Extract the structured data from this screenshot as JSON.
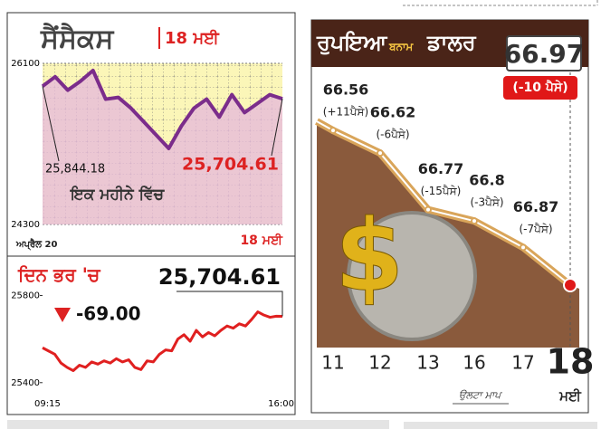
{
  "chart_data": [
    {
      "type": "line",
      "title": "ਸੈਂਸੈਕਸ",
      "subtitle": "18 ਮਈ",
      "annotation": "ਇਕ ਮਹੀਨੇ ਵਿੱਚ",
      "categories": [
        "ਅਪ੍ਰੈਲ 20",
        null,
        null,
        null,
        null,
        null,
        null,
        null,
        null,
        null,
        null,
        null,
        null,
        null,
        null,
        null,
        null,
        null,
        null,
        "18 ਮਈ"
      ],
      "values": [
        25844.18,
        25950,
        25800,
        25900,
        26020,
        25700,
        25720,
        25600,
        25450,
        25300,
        25150,
        25400,
        25600,
        25700,
        25500,
        25750,
        25550,
        25650,
        25750,
        25704.61
      ],
      "value_labels": [
        "25,844.18",
        null,
        null,
        null,
        null,
        null,
        null,
        null,
        null,
        null,
        null,
        null,
        null,
        null,
        null,
        null,
        null,
        null,
        null,
        "25,704.61"
      ],
      "color": "#7b2d8b",
      "ylim": [
        24300,
        26100
      ],
      "yticks": [
        24300,
        26100
      ],
      "grid": true
    },
    {
      "type": "line",
      "title": "ਦਿਨ ਭਰ 'ਚ",
      "change_label": "-69.00",
      "categories": [
        "09:15",
        null,
        null,
        null,
        null,
        null,
        null,
        null,
        null,
        null,
        null,
        null,
        null,
        null,
        null,
        null,
        null,
        null,
        null,
        null,
        null,
        null,
        null,
        null,
        null,
        null,
        null,
        null,
        null,
        null,
        null,
        null,
        null,
        null,
        null,
        null,
        null,
        null,
        null,
        "16:00"
      ],
      "values": [
        25560,
        25545,
        25530,
        25490,
        25470,
        25455,
        25480,
        25470,
        25495,
        25485,
        25500,
        25490,
        25510,
        25495,
        25505,
        25470,
        25460,
        25500,
        25495,
        25530,
        25550,
        25546,
        25600,
        25620,
        25590,
        25640,
        25610,
        25630,
        25615,
        25640,
        25660,
        25650,
        25670,
        25660,
        25690,
        25725,
        25710,
        25700,
        25705,
        25704.61
      ],
      "value_labels": [
        null,
        null,
        null,
        null,
        null,
        null,
        null,
        null,
        null,
        null,
        null,
        null,
        null,
        null,
        null,
        null,
        null,
        null,
        null,
        null,
        null,
        null,
        null,
        null,
        null,
        null,
        null,
        null,
        null,
        null,
        null,
        null,
        null,
        null,
        null,
        null,
        null,
        null,
        null,
        "25,704.61"
      ],
      "color": "#e02020",
      "ylim": [
        25370,
        25910
      ],
      "yticks": [
        25400,
        25800
      ]
    },
    {
      "type": "line",
      "title": [
        "ਰੁਪਇਆ",
        "ਬਨਾਮ",
        "ਡਾਲਰ"
      ],
      "categories": [
        "11",
        "12",
        "13",
        "16",
        "17",
        "18"
      ],
      "x_unit": "ਮਈ",
      "values": [
        66.56,
        66.62,
        66.77,
        66.8,
        66.87,
        66.97
      ],
      "changes": [
        "(+11ਪੈਸੇ)",
        "(-6ਪੈਸੇ)",
        "(-15ਪੈਸੇ)",
        "(-3ਪੈਸੇ)",
        "(-7ਪੈਸੇ)",
        "(-10 ਪੈਸੇ)"
      ],
      "ylim": [
        66.43,
        67.03
      ],
      "inverted": true,
      "note": "ਉਲਟਾ ਮਾਪ",
      "color": "#d9a55a",
      "area_color": "#8a5a3c"
    }
  ]
}
